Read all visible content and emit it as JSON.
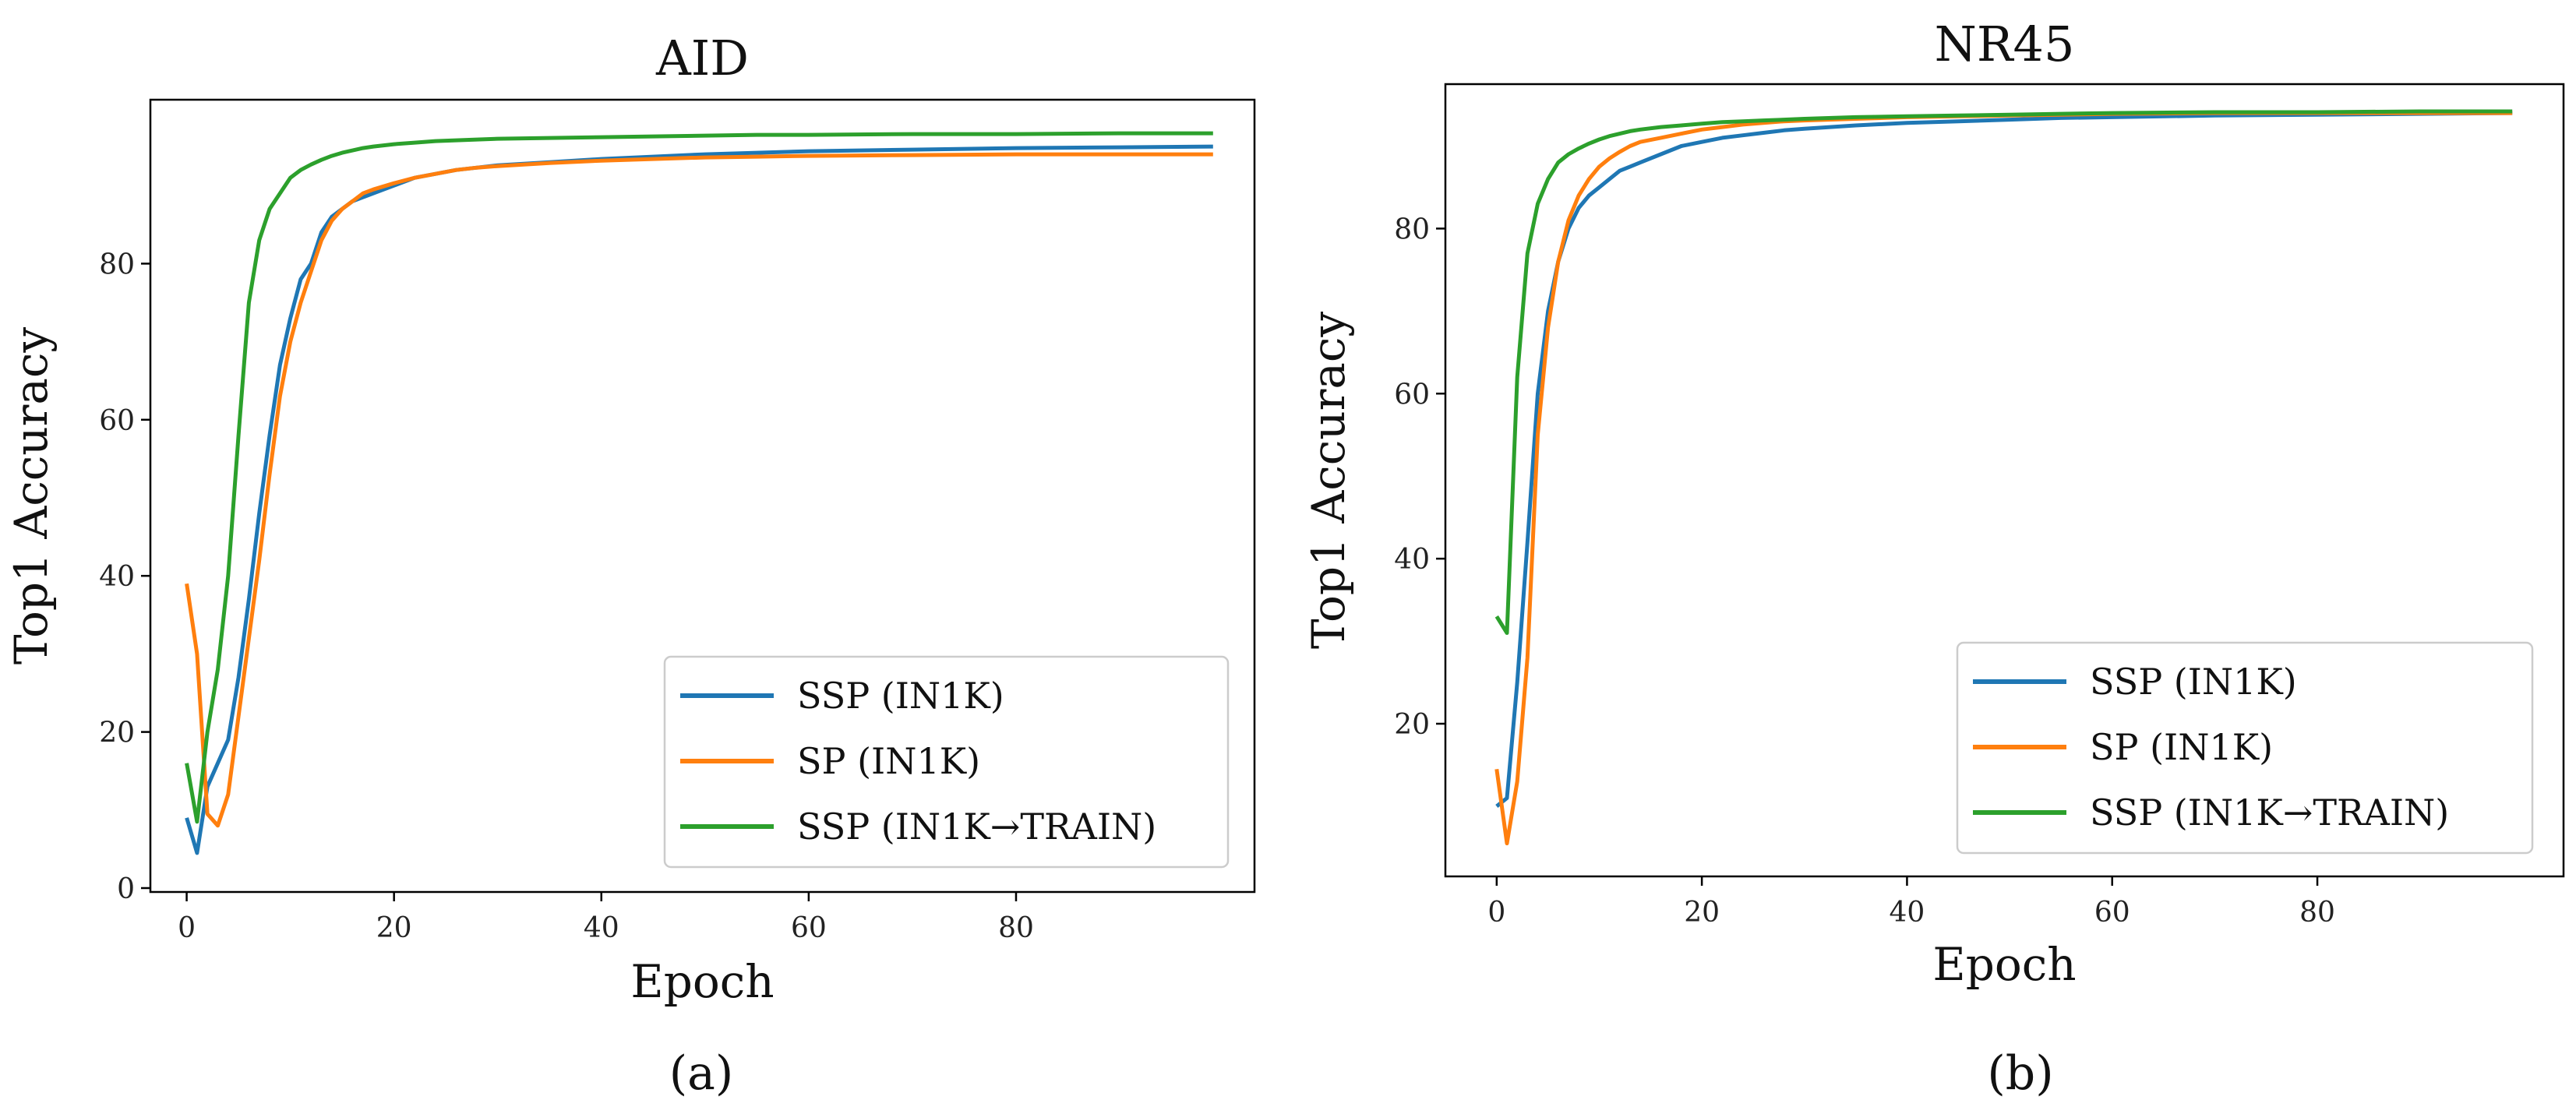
{
  "chart_data": [
    {
      "type": "line",
      "title": "AID",
      "xlabel": "Epoch",
      "ylabel": "Top1 Accuracy",
      "caption": "(a)",
      "xlim": [
        -3.5,
        103
      ],
      "ylim": [
        -0.5,
        101
      ],
      "xticks": [
        0,
        20,
        40,
        60,
        80
      ],
      "yticks": [
        0,
        20,
        40,
        60,
        80
      ],
      "legend_position": "lower-right",
      "series": [
        {
          "name": "SSP (IN1K)",
          "color": "#1f77b4",
          "x": [
            0,
            1,
            2,
            3,
            4,
            5,
            6,
            7,
            8,
            9,
            10,
            11,
            12,
            13,
            14,
            15,
            16,
            17,
            18,
            20,
            22,
            24,
            26,
            28,
            30,
            35,
            40,
            45,
            50,
            55,
            60,
            70,
            80,
            90,
            99
          ],
          "values": [
            9,
            4.5,
            13,
            16,
            19,
            27,
            37,
            48,
            58,
            67,
            73,
            78,
            80,
            84,
            86,
            87,
            88,
            88.5,
            89,
            90,
            91,
            91.5,
            92,
            92.3,
            92.6,
            93,
            93.4,
            93.7,
            94,
            94.2,
            94.4,
            94.6,
            94.8,
            94.9,
            95
          ]
        },
        {
          "name": "SP (IN1K)",
          "color": "#ff7f0e",
          "x": [
            0,
            1,
            2,
            3,
            4,
            5,
            6,
            7,
            8,
            9,
            10,
            11,
            12,
            13,
            14,
            15,
            16,
            17,
            18,
            20,
            22,
            24,
            26,
            28,
            30,
            35,
            40,
            45,
            50,
            55,
            60,
            70,
            80,
            90,
            99
          ],
          "values": [
            39,
            30,
            9.5,
            8,
            12,
            22,
            32,
            42,
            53,
            63,
            70,
            75,
            79,
            83,
            85.5,
            87,
            88,
            89,
            89.5,
            90.3,
            91,
            91.5,
            92,
            92.3,
            92.5,
            92.9,
            93.2,
            93.4,
            93.6,
            93.7,
            93.8,
            93.9,
            94,
            94,
            94
          ]
        },
        {
          "name": "SSP (IN1K→TRAIN)",
          "color": "#2ca02c",
          "x": [
            0,
            1,
            2,
            3,
            4,
            5,
            6,
            7,
            8,
            9,
            10,
            11,
            12,
            13,
            14,
            15,
            16,
            17,
            18,
            20,
            22,
            24,
            26,
            28,
            30,
            35,
            40,
            45,
            50,
            55,
            60,
            70,
            80,
            90,
            99
          ],
          "values": [
            16,
            8.5,
            20,
            28,
            40,
            58,
            75,
            83,
            87,
            89,
            91,
            92,
            92.7,
            93.3,
            93.8,
            94.2,
            94.5,
            94.8,
            95,
            95.3,
            95.5,
            95.7,
            95.8,
            95.9,
            96,
            96.1,
            96.2,
            96.3,
            96.4,
            96.5,
            96.5,
            96.6,
            96.6,
            96.7,
            96.7
          ]
        }
      ]
    },
    {
      "type": "line",
      "title": "NR45",
      "xlabel": "Epoch",
      "ylabel": "Top1 Accuracy",
      "caption": "(b)",
      "xlim": [
        -5,
        104
      ],
      "ylim": [
        1.5,
        97.5
      ],
      "xticks": [
        0,
        20,
        40,
        60,
        80
      ],
      "yticks": [
        20,
        40,
        60,
        80
      ],
      "legend_position": "lower-right",
      "series": [
        {
          "name": "SSP (IN1K)",
          "color": "#1f77b4",
          "x": [
            0,
            1,
            2,
            3,
            4,
            5,
            6,
            7,
            8,
            9,
            10,
            11,
            12,
            13,
            14,
            16,
            18,
            20,
            22,
            24,
            26,
            28,
            30,
            35,
            40,
            45,
            50,
            55,
            60,
            70,
            80,
            90,
            99
          ],
          "values": [
            10,
            11,
            25,
            42,
            60,
            70,
            76,
            80,
            82.5,
            84,
            85,
            86,
            87,
            87.5,
            88,
            89,
            90,
            90.5,
            91,
            91.3,
            91.6,
            91.9,
            92.1,
            92.5,
            92.8,
            93,
            93.2,
            93.4,
            93.5,
            93.7,
            93.8,
            93.9,
            94
          ]
        },
        {
          "name": "SP (IN1K)",
          "color": "#ff7f0e",
          "x": [
            0,
            1,
            2,
            3,
            4,
            5,
            6,
            7,
            8,
            9,
            10,
            11,
            12,
            13,
            14,
            16,
            18,
            20,
            22,
            24,
            26,
            28,
            30,
            35,
            40,
            45,
            50,
            55,
            60,
            70,
            80,
            90,
            99
          ],
          "values": [
            14.5,
            5.5,
            13,
            28,
            55,
            68,
            76,
            81,
            84,
            86,
            87.5,
            88.5,
            89.3,
            90,
            90.5,
            91,
            91.5,
            92,
            92.3,
            92.6,
            92.8,
            93,
            93.1,
            93.3,
            93.5,
            93.6,
            93.7,
            93.8,
            93.9,
            94,
            94,
            94,
            94
          ]
        },
        {
          "name": "SSP (IN1K→TRAIN)",
          "color": "#2ca02c",
          "x": [
            0,
            1,
            2,
            3,
            4,
            5,
            6,
            7,
            8,
            9,
            10,
            11,
            12,
            13,
            14,
            16,
            18,
            20,
            22,
            24,
            26,
            28,
            30,
            35,
            40,
            45,
            50,
            55,
            60,
            70,
            80,
            90,
            99
          ],
          "values": [
            33,
            31,
            62,
            77,
            83,
            86,
            88,
            89,
            89.7,
            90.3,
            90.8,
            91.2,
            91.5,
            91.8,
            92,
            92.3,
            92.5,
            92.7,
            92.9,
            93,
            93.1,
            93.2,
            93.3,
            93.5,
            93.6,
            93.7,
            93.8,
            93.9,
            94,
            94.1,
            94.1,
            94.2,
            94.2
          ]
        }
      ]
    }
  ]
}
